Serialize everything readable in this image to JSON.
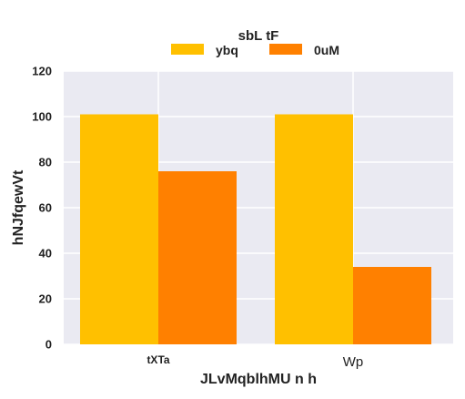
{
  "chart_data": {
    "type": "bar",
    "categories": [
      "tXTa",
      "Wp"
    ],
    "series": [
      {
        "name": "ybq",
        "values": [
          101,
          101
        ],
        "color": "#ffc000"
      },
      {
        "name": "0uM",
        "values": [
          76,
          34
        ],
        "color": "#ff8000"
      }
    ],
    "xlabel": "JLvMqblhMU n h",
    "ylabel": "hNJfqewVt",
    "ylim": [
      0,
      120
    ],
    "yticks": [
      0,
      20,
      40,
      60,
      80,
      100,
      120
    ],
    "grid": true,
    "legend": {
      "title": "sbL tF",
      "placement": "top-center"
    },
    "background_color": "#eaeaf2",
    "grid_color": "#ffffff"
  }
}
